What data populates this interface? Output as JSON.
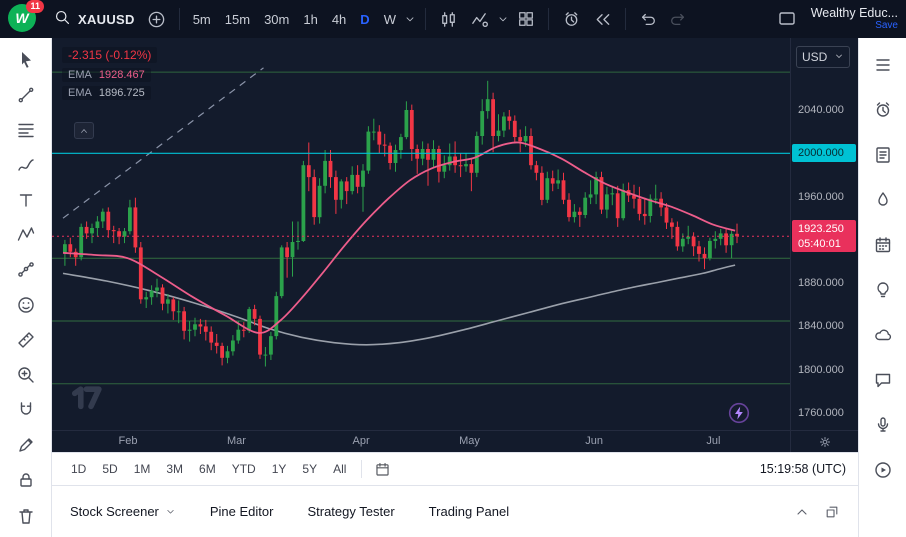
{
  "toolbar": {
    "badge": "11",
    "symbol": "XAUUSD",
    "intervals": [
      "5m",
      "15m",
      "30m",
      "1h",
      "4h",
      "D",
      "W"
    ],
    "active_interval": "D",
    "account": "Wealthy Educ...",
    "save": "Save"
  },
  "legend": {
    "change": "-2.315 (-0.12%)",
    "indicators": [
      {
        "name": "EMA",
        "value": "1928.467",
        "color": "#ed5d8b"
      },
      {
        "name": "EMA",
        "value": "1896.725",
        "color": "#b7bcc6"
      }
    ]
  },
  "price_axis": {
    "currency": "USD",
    "labels": [
      {
        "text": "2040.000",
        "price": 2040
      },
      {
        "text": "1960.000",
        "price": 1960
      },
      {
        "text": "1880.000",
        "price": 1880
      },
      {
        "text": "1840.000",
        "price": 1840
      },
      {
        "text": "1800.000",
        "price": 1800
      },
      {
        "text": "1760.000",
        "price": 1760
      }
    ],
    "level_label": {
      "text": "2000.000",
      "price": 2000,
      "color": "#00c2d4"
    },
    "last_price": {
      "text": "1923.250",
      "countdown": "05:40:01",
      "price": 1923.25,
      "color": "#e9315c"
    }
  },
  "time_axis": {
    "months": [
      {
        "label": "Feb",
        "index": 12
      },
      {
        "label": "Mar",
        "index": 32
      },
      {
        "label": "Apr",
        "index": 55
      },
      {
        "label": "May",
        "index": 75
      },
      {
        "label": "Jun",
        "index": 98
      },
      {
        "label": "Jul",
        "index": 120
      }
    ]
  },
  "chart_data": {
    "type": "candlestick",
    "symbol": "XAUUSD",
    "interval": "D",
    "ylim": [
      1760,
      2080
    ],
    "up_color": "#2ba24b",
    "down_color": "#f23645",
    "candles": [
      [
        1908,
        1920,
        1896,
        1916
      ],
      [
        1916,
        1922,
        1904,
        1909
      ],
      [
        1909,
        1912,
        1896,
        1904
      ],
      [
        1904,
        1935,
        1901,
        1932
      ],
      [
        1932,
        1937,
        1921,
        1926
      ],
      [
        1926,
        1935,
        1917,
        1931
      ],
      [
        1931,
        1942,
        1923,
        1937
      ],
      [
        1937,
        1949,
        1931,
        1946
      ],
      [
        1946,
        1950,
        1922,
        1929
      ],
      [
        1929,
        1933,
        1917,
        1928
      ],
      [
        1928,
        1931,
        1916,
        1923
      ],
      [
        1923,
        1931,
        1917,
        1928
      ],
      [
        1928,
        1957,
        1925,
        1950
      ],
      [
        1950,
        1959,
        1908,
        1913
      ],
      [
        1913,
        1918,
        1861,
        1865
      ],
      [
        1865,
        1872,
        1857,
        1867
      ],
      [
        1867,
        1878,
        1860,
        1873
      ],
      [
        1873,
        1884,
        1867,
        1876
      ],
      [
        1876,
        1879,
        1855,
        1861
      ],
      [
        1861,
        1870,
        1852,
        1865
      ],
      [
        1865,
        1867,
        1846,
        1854
      ],
      [
        1854,
        1864,
        1843,
        1854
      ],
      [
        1854,
        1858,
        1828,
        1836
      ],
      [
        1836,
        1845,
        1826,
        1837
      ],
      [
        1837,
        1848,
        1831,
        1842
      ],
      [
        1842,
        1847,
        1833,
        1840
      ],
      [
        1840,
        1846,
        1827,
        1835
      ],
      [
        1835,
        1840,
        1818,
        1825
      ],
      [
        1825,
        1833,
        1815,
        1822
      ],
      [
        1822,
        1825,
        1804,
        1811
      ],
      [
        1811,
        1822,
        1806,
        1817
      ],
      [
        1817,
        1832,
        1813,
        1827
      ],
      [
        1827,
        1845,
        1824,
        1837
      ],
      [
        1837,
        1844,
        1830,
        1836
      ],
      [
        1836,
        1858,
        1834,
        1856
      ],
      [
        1856,
        1860,
        1841,
        1847
      ],
      [
        1847,
        1850,
        1810,
        1814
      ],
      [
        1814,
        1821,
        1803,
        1814
      ],
      [
        1814,
        1835,
        1809,
        1831
      ],
      [
        1831,
        1872,
        1828,
        1868
      ],
      [
        1868,
        1915,
        1866,
        1913
      ],
      [
        1913,
        1918,
        1885,
        1904
      ],
      [
        1904,
        1937,
        1886,
        1918
      ],
      [
        1918,
        1937,
        1911,
        1919
      ],
      [
        1919,
        1993,
        1918,
        1989
      ],
      [
        1989,
        2010,
        1965,
        1978
      ],
      [
        1978,
        1985,
        1934,
        1941
      ],
      [
        1941,
        1977,
        1935,
        1970
      ],
      [
        1970,
        2003,
        1963,
        1993
      ],
      [
        1993,
        2003,
        1968,
        1978
      ],
      [
        1978,
        1984,
        1944,
        1957
      ],
      [
        1957,
        1976,
        1949,
        1974
      ],
      [
        1974,
        1978,
        1953,
        1965
      ],
      [
        1965,
        1988,
        1962,
        1980
      ],
      [
        1980,
        1989,
        1963,
        1969
      ],
      [
        1969,
        1990,
        1946,
        1984
      ],
      [
        1984,
        2025,
        1981,
        2020
      ],
      [
        2020,
        2032,
        2012,
        2020
      ],
      [
        2020,
        2026,
        2000,
        2008
      ],
      [
        2008,
        2018,
        1997,
        2007
      ],
      [
        2007,
        2010,
        1985,
        1991
      ],
      [
        1991,
        2008,
        1983,
        2003
      ],
      [
        2003,
        2018,
        1995,
        2015
      ],
      [
        2015,
        2048,
        2013,
        2040
      ],
      [
        2040,
        2045,
        1993,
        2004
      ],
      [
        2004,
        2008,
        1981,
        1995
      ],
      [
        1995,
        2011,
        1989,
        2004
      ],
      [
        2004,
        2009,
        1970,
        1994
      ],
      [
        1994,
        2012,
        1987,
        2004
      ],
      [
        2004,
        2007,
        1973,
        1983
      ],
      [
        1983,
        1998,
        1977,
        1989
      ],
      [
        1989,
        2009,
        1984,
        1997
      ],
      [
        1997,
        2011,
        1982,
        1989
      ],
      [
        1989,
        2000,
        1978,
        1988
      ],
      [
        1988,
        2000,
        1983,
        1990
      ],
      [
        1990,
        1995,
        1965,
        1982
      ],
      [
        1982,
        2020,
        1978,
        2016
      ],
      [
        2016,
        2050,
        2008,
        2039
      ],
      [
        2039,
        2067,
        2032,
        2050
      ],
      [
        2050,
        2056,
        2001,
        2016
      ],
      [
        2016,
        2036,
        2011,
        2021
      ],
      [
        2021,
        2038,
        2015,
        2034
      ],
      [
        2034,
        2040,
        2022,
        2030
      ],
      [
        2030,
        2035,
        2010,
        2015
      ],
      [
        2015,
        2022,
        2001,
        2011
      ],
      [
        2011,
        2025,
        2006,
        2016
      ],
      [
        2016,
        2023,
        1985,
        1989
      ],
      [
        1989,
        1993,
        1975,
        1982
      ],
      [
        1982,
        1988,
        1952,
        1957
      ],
      [
        1957,
        1983,
        1954,
        1977
      ],
      [
        1977,
        1984,
        1965,
        1972
      ],
      [
        1972,
        1985,
        1967,
        1975
      ],
      [
        1975,
        1982,
        1953,
        1957
      ],
      [
        1957,
        1963,
        1937,
        1941
      ],
      [
        1941,
        1953,
        1936,
        1946
      ],
      [
        1946,
        1950,
        1932,
        1943
      ],
      [
        1943,
        1964,
        1940,
        1959
      ],
      [
        1959,
        1975,
        1953,
        1962
      ],
      [
        1962,
        1983,
        1953,
        1978
      ],
      [
        1978,
        1983,
        1944,
        1948
      ],
      [
        1948,
        1969,
        1940,
        1962
      ],
      [
        1962,
        1970,
        1952,
        1963
      ],
      [
        1963,
        1970,
        1932,
        1940
      ],
      [
        1940,
        1972,
        1938,
        1966
      ],
      [
        1966,
        1973,
        1955,
        1961
      ],
      [
        1961,
        1971,
        1949,
        1958
      ],
      [
        1958,
        1969,
        1938,
        1944
      ],
      [
        1944,
        1959,
        1934,
        1942
      ],
      [
        1942,
        1962,
        1936,
        1958
      ],
      [
        1958,
        1971,
        1953,
        1958
      ],
      [
        1958,
        1964,
        1942,
        1950
      ],
      [
        1950,
        1954,
        1930,
        1936
      ],
      [
        1936,
        1940,
        1921,
        1932
      ],
      [
        1932,
        1937,
        1910,
        1914
      ],
      [
        1914,
        1926,
        1909,
        1921
      ],
      [
        1921,
        1933,
        1916,
        1923
      ],
      [
        1923,
        1927,
        1905,
        1914
      ],
      [
        1914,
        1919,
        1900,
        1907
      ],
      [
        1907,
        1913,
        1893,
        1903
      ],
      [
        1903,
        1922,
        1901,
        1919
      ],
      [
        1919,
        1928,
        1912,
        1921
      ],
      [
        1921,
        1930,
        1915,
        1926
      ],
      [
        1926,
        1931,
        1908,
        1915
      ],
      [
        1915,
        1929,
        1903,
        1925.57
      ],
      [
        1925.57,
        1935,
        1917,
        1923.25
      ]
    ],
    "emas": [
      {
        "name": "EMA fast",
        "color": "#ed5d8b",
        "last_value": 1928.467,
        "points": [
          [
            0,
            1908
          ],
          [
            6,
            1906
          ],
          [
            12,
            1903
          ],
          [
            18,
            1886
          ],
          [
            24,
            1867
          ],
          [
            30,
            1850
          ],
          [
            36,
            1834
          ],
          [
            40,
            1845
          ],
          [
            44,
            1866
          ],
          [
            48,
            1890
          ],
          [
            52,
            1915
          ],
          [
            56,
            1938
          ],
          [
            60,
            1958
          ],
          [
            64,
            1975
          ],
          [
            68,
            1986
          ],
          [
            72,
            1992
          ],
          [
            76,
            1996
          ],
          [
            80,
            2006
          ],
          [
            84,
            2010
          ],
          [
            88,
            2004
          ],
          [
            92,
            1995
          ],
          [
            96,
            1983
          ],
          [
            100,
            1972
          ],
          [
            104,
            1964
          ],
          [
            108,
            1957
          ],
          [
            112,
            1951
          ],
          [
            116,
            1943
          ],
          [
            120,
            1934
          ],
          [
            124,
            1928.5
          ]
        ]
      },
      {
        "name": "EMA slow",
        "color": "#9aa0aa",
        "last_value": 1896.725,
        "points": [
          [
            0,
            1889
          ],
          [
            8,
            1882
          ],
          [
            16,
            1873
          ],
          [
            24,
            1862
          ],
          [
            32,
            1849
          ],
          [
            38,
            1838
          ],
          [
            44,
            1830
          ],
          [
            50,
            1825
          ],
          [
            56,
            1823
          ],
          [
            62,
            1825
          ],
          [
            68,
            1830
          ],
          [
            74,
            1837
          ],
          [
            80,
            1845
          ],
          [
            86,
            1853
          ],
          [
            92,
            1861
          ],
          [
            98,
            1868
          ],
          [
            104,
            1875
          ],
          [
            110,
            1881
          ],
          [
            114,
            1885
          ],
          [
            118,
            1889
          ],
          [
            121,
            1893
          ],
          [
            124,
            1896.7
          ]
        ]
      }
    ],
    "levels": [
      {
        "price": 2075,
        "color": "#4caf50",
        "opacity": 0.5
      },
      {
        "price": 1903,
        "color": "#4caf50",
        "opacity": 0.55
      },
      {
        "price": 1845,
        "color": "#4caf50",
        "opacity": 0.55
      },
      {
        "price": 1787,
        "color": "#4caf50",
        "opacity": 0.5
      },
      {
        "price": 2000,
        "color": "#00c2d4",
        "opacity": 1,
        "top": true
      }
    ],
    "trendline": {
      "from": [
        0,
        1940
      ],
      "to": [
        37,
        2079
      ],
      "style": "dashed",
      "color": "#8a93a8"
    }
  },
  "range_bar": {
    "ranges": [
      "1D",
      "5D",
      "1M",
      "3M",
      "6M",
      "YTD",
      "1Y",
      "5Y",
      "All"
    ],
    "clock": "15:19:58 (UTC)"
  },
  "bottom_tabs": {
    "tabs": [
      "Stock Screener",
      "Pine Editor",
      "Strategy Tester",
      "Trading Panel"
    ]
  }
}
